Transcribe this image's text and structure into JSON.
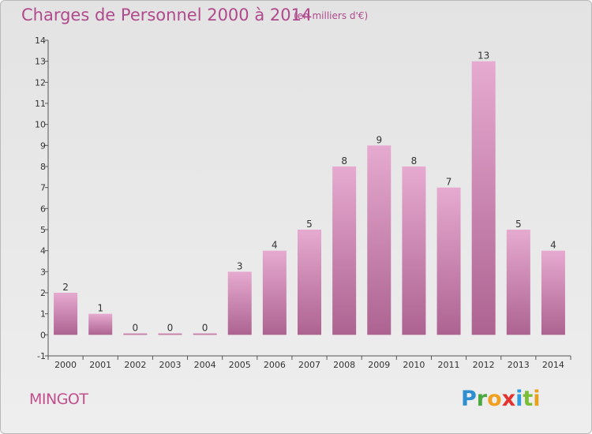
{
  "header": {
    "title": "Charges de Personnel 2000 à 2014",
    "unit": "(en milliers d'€)"
  },
  "footer": {
    "commune": "MINGOT",
    "logo_text": "Proxiti"
  },
  "colors": {
    "title": "#b04a8c",
    "bar_top": "#e4a6cc",
    "bar_bottom": "#b06592"
  },
  "chart_data": {
    "type": "bar",
    "title": "Charges de Personnel 2000 à 2014",
    "subtitle": "(en milliers d'€)",
    "categories": [
      "2000",
      "2001",
      "2002",
      "2003",
      "2004",
      "2005",
      "2006",
      "2007",
      "2008",
      "2009",
      "2010",
      "2011",
      "2012",
      "2013",
      "2014"
    ],
    "values": [
      2,
      1,
      0,
      0,
      0,
      3,
      4,
      5,
      8,
      9,
      8,
      7,
      13,
      5,
      4
    ],
    "ylim": [
      -1,
      14
    ],
    "yticks": [
      -1,
      0,
      1,
      2,
      3,
      4,
      5,
      6,
      7,
      8,
      9,
      10,
      11,
      12,
      13,
      14
    ],
    "grid": false,
    "data_labels": true
  }
}
